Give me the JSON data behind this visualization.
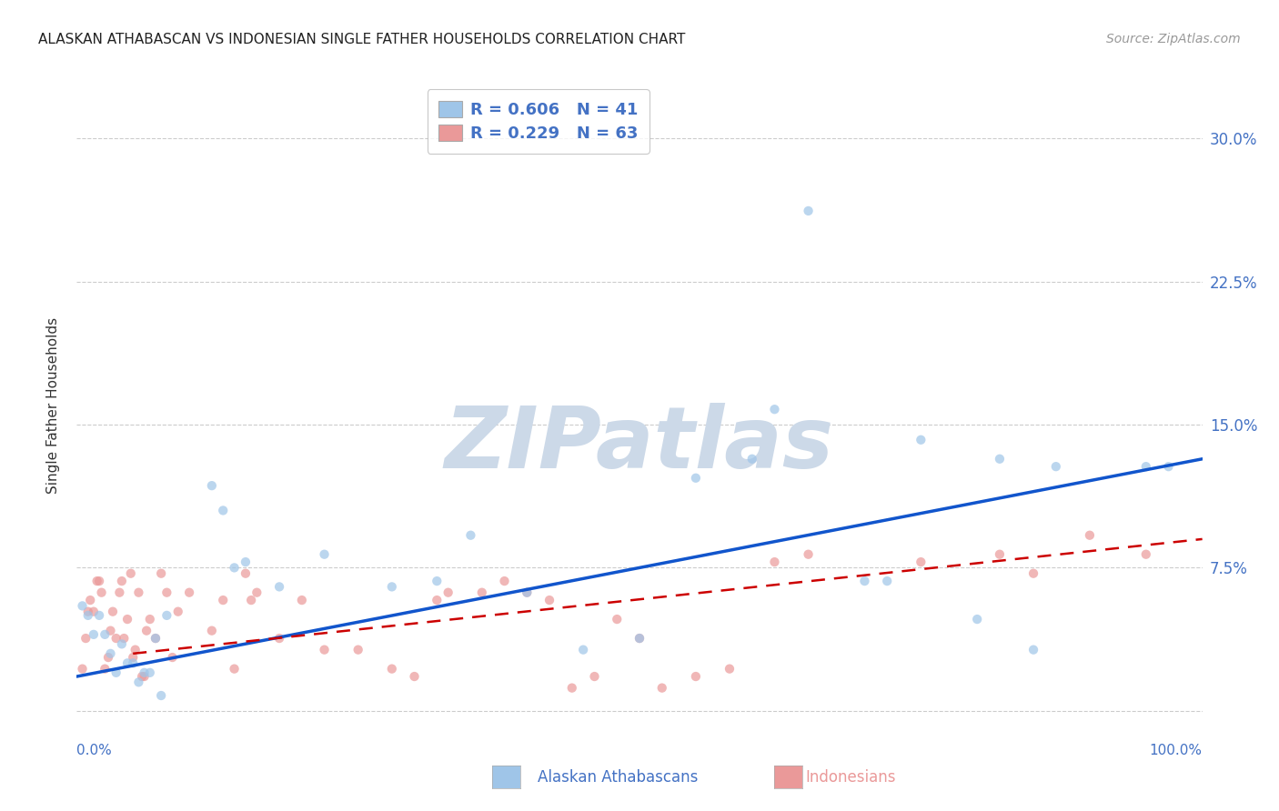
{
  "title": "ALASKAN ATHABASCAN VS INDONESIAN SINGLE FATHER HOUSEHOLDS CORRELATION CHART",
  "source": "Source: ZipAtlas.com",
  "ylabel": "Single Father Households",
  "watermark": "ZIPatlas",
  "xlim": [
    0.0,
    1.0
  ],
  "ylim": [
    -0.01,
    0.33
  ],
  "yticks": [
    0.0,
    0.075,
    0.15,
    0.225,
    0.3
  ],
  "ytick_labels": [
    "",
    "7.5%",
    "15.0%",
    "22.5%",
    "30.0%"
  ],
  "title_color": "#222222",
  "title_fontsize": 11,
  "axis_label_color": "#4472c4",
  "legend_r1": "R = 0.606   N = 41",
  "legend_r2": "R = 0.229   N = 63",
  "blue_color": "#9fc5e8",
  "pink_color": "#ea9999",
  "trend_blue_color": "#1155cc",
  "trend_pink_color": "#cc0000",
  "blue_scatter": [
    [
      0.005,
      0.055
    ],
    [
      0.01,
      0.05
    ],
    [
      0.015,
      0.04
    ],
    [
      0.02,
      0.05
    ],
    [
      0.025,
      0.04
    ],
    [
      0.03,
      0.03
    ],
    [
      0.035,
      0.02
    ],
    [
      0.04,
      0.035
    ],
    [
      0.045,
      0.025
    ],
    [
      0.05,
      0.025
    ],
    [
      0.055,
      0.015
    ],
    [
      0.06,
      0.02
    ],
    [
      0.065,
      0.02
    ],
    [
      0.07,
      0.038
    ],
    [
      0.075,
      0.008
    ],
    [
      0.08,
      0.05
    ],
    [
      0.12,
      0.118
    ],
    [
      0.13,
      0.105
    ],
    [
      0.14,
      0.075
    ],
    [
      0.15,
      0.078
    ],
    [
      0.18,
      0.065
    ],
    [
      0.22,
      0.082
    ],
    [
      0.28,
      0.065
    ],
    [
      0.32,
      0.068
    ],
    [
      0.35,
      0.092
    ],
    [
      0.4,
      0.062
    ],
    [
      0.45,
      0.032
    ],
    [
      0.5,
      0.038
    ],
    [
      0.55,
      0.122
    ],
    [
      0.6,
      0.132
    ],
    [
      0.62,
      0.158
    ],
    [
      0.65,
      0.262
    ],
    [
      0.7,
      0.068
    ],
    [
      0.72,
      0.068
    ],
    [
      0.75,
      0.142
    ],
    [
      0.8,
      0.048
    ],
    [
      0.82,
      0.132
    ],
    [
      0.85,
      0.032
    ],
    [
      0.87,
      0.128
    ],
    [
      0.95,
      0.128
    ],
    [
      0.97,
      0.128
    ]
  ],
  "pink_scatter": [
    [
      0.005,
      0.022
    ],
    [
      0.008,
      0.038
    ],
    [
      0.01,
      0.052
    ],
    [
      0.012,
      0.058
    ],
    [
      0.015,
      0.052
    ],
    [
      0.018,
      0.068
    ],
    [
      0.02,
      0.068
    ],
    [
      0.022,
      0.062
    ],
    [
      0.025,
      0.022
    ],
    [
      0.028,
      0.028
    ],
    [
      0.03,
      0.042
    ],
    [
      0.032,
      0.052
    ],
    [
      0.035,
      0.038
    ],
    [
      0.038,
      0.062
    ],
    [
      0.04,
      0.068
    ],
    [
      0.042,
      0.038
    ],
    [
      0.045,
      0.048
    ],
    [
      0.048,
      0.072
    ],
    [
      0.05,
      0.028
    ],
    [
      0.052,
      0.032
    ],
    [
      0.055,
      0.062
    ],
    [
      0.058,
      0.018
    ],
    [
      0.06,
      0.018
    ],
    [
      0.062,
      0.042
    ],
    [
      0.065,
      0.048
    ],
    [
      0.07,
      0.038
    ],
    [
      0.075,
      0.072
    ],
    [
      0.08,
      0.062
    ],
    [
      0.085,
      0.028
    ],
    [
      0.09,
      0.052
    ],
    [
      0.1,
      0.062
    ],
    [
      0.12,
      0.042
    ],
    [
      0.13,
      0.058
    ],
    [
      0.14,
      0.022
    ],
    [
      0.15,
      0.072
    ],
    [
      0.155,
      0.058
    ],
    [
      0.16,
      0.062
    ],
    [
      0.18,
      0.038
    ],
    [
      0.2,
      0.058
    ],
    [
      0.22,
      0.032
    ],
    [
      0.25,
      0.032
    ],
    [
      0.28,
      0.022
    ],
    [
      0.3,
      0.018
    ],
    [
      0.32,
      0.058
    ],
    [
      0.33,
      0.062
    ],
    [
      0.36,
      0.062
    ],
    [
      0.38,
      0.068
    ],
    [
      0.4,
      0.062
    ],
    [
      0.42,
      0.058
    ],
    [
      0.44,
      0.012
    ],
    [
      0.46,
      0.018
    ],
    [
      0.48,
      0.048
    ],
    [
      0.5,
      0.038
    ],
    [
      0.52,
      0.012
    ],
    [
      0.55,
      0.018
    ],
    [
      0.58,
      0.022
    ],
    [
      0.62,
      0.078
    ],
    [
      0.65,
      0.082
    ],
    [
      0.75,
      0.078
    ],
    [
      0.82,
      0.082
    ],
    [
      0.85,
      0.072
    ],
    [
      0.9,
      0.092
    ],
    [
      0.95,
      0.082
    ]
  ],
  "blue_trendline": [
    [
      0.0,
      0.018
    ],
    [
      1.0,
      0.132
    ]
  ],
  "pink_trendline": [
    [
      0.05,
      0.03
    ],
    [
      1.0,
      0.09
    ]
  ],
  "background_color": "#ffffff",
  "grid_color": "#cccccc",
  "scatter_size": 55,
  "scatter_alpha": 0.7,
  "watermark_color": "#ccd9e8",
  "source_color": "#999999"
}
